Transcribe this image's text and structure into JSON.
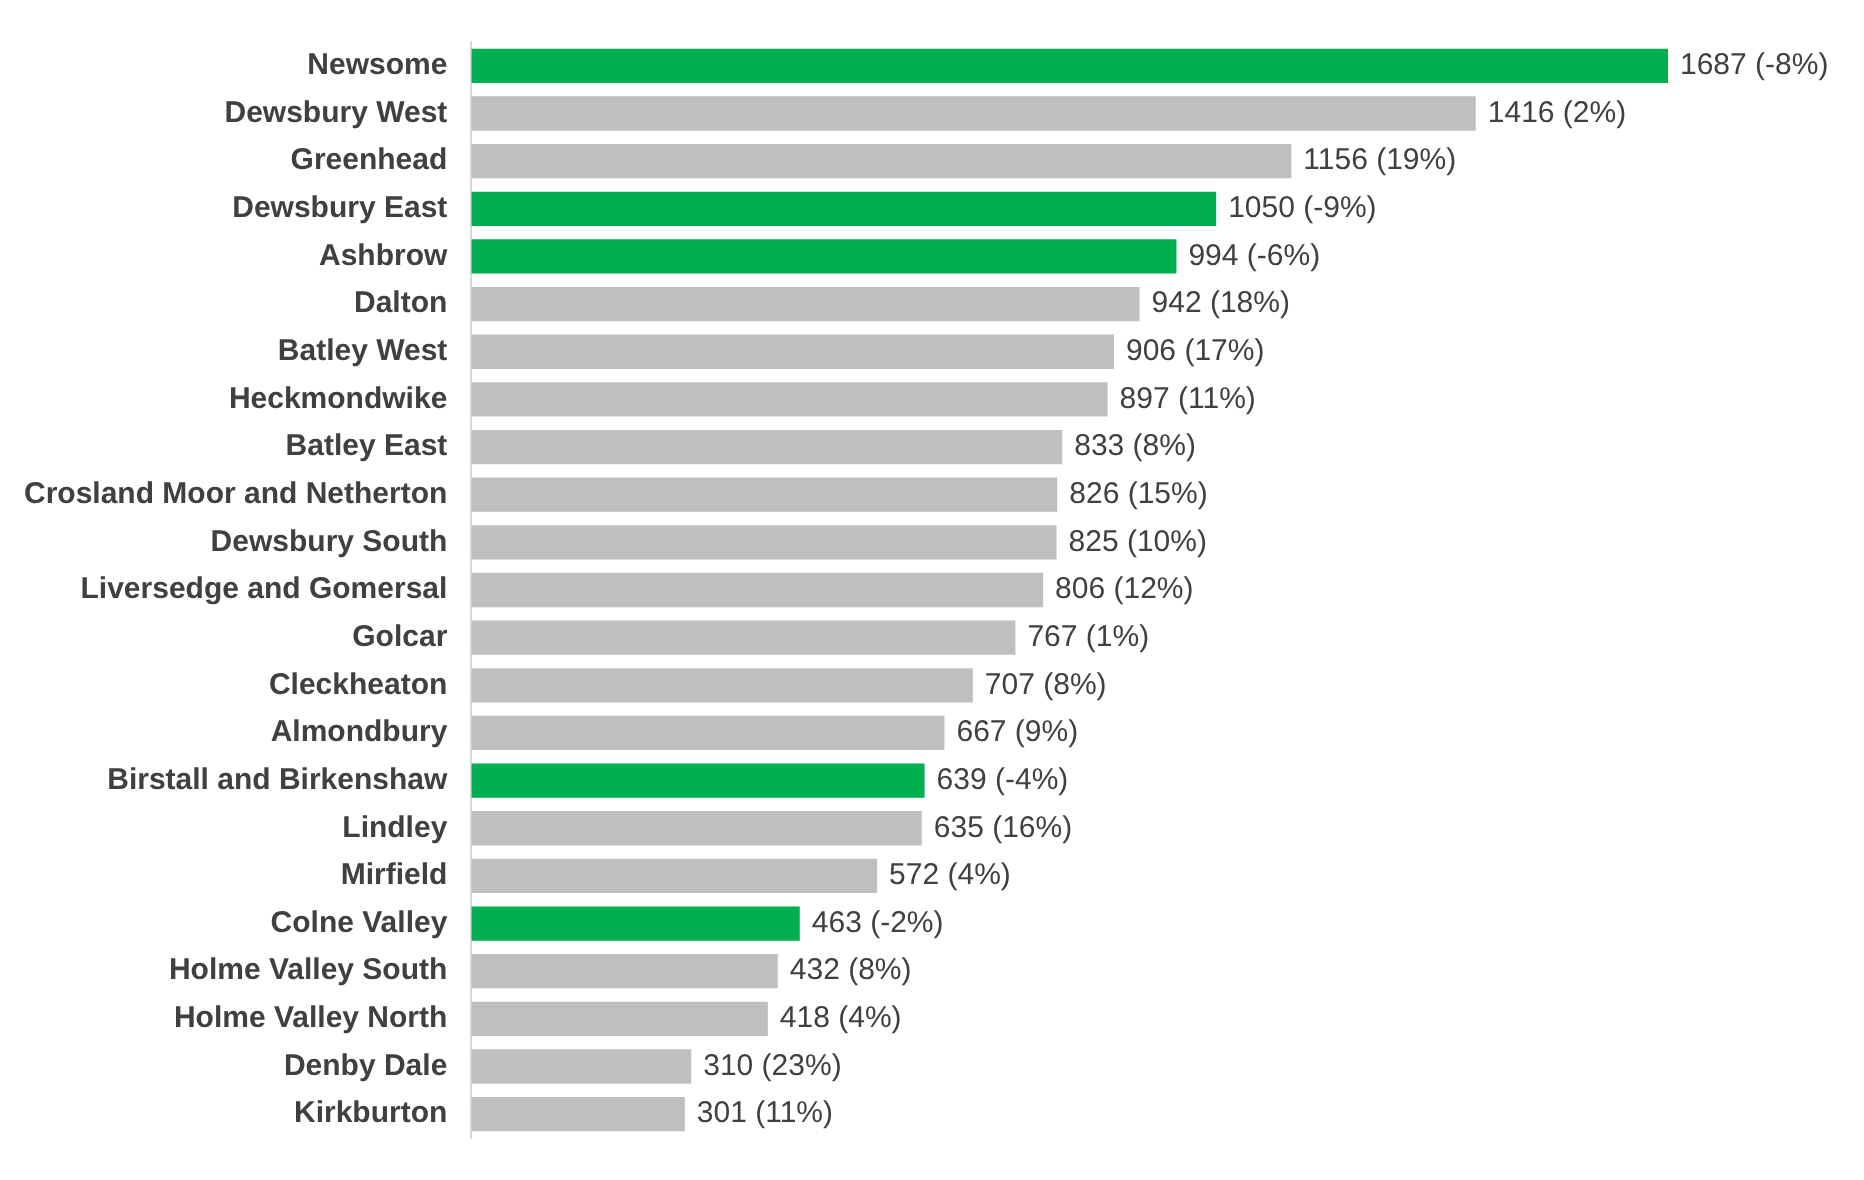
{
  "chart_data": {
    "type": "bar",
    "orientation": "horizontal",
    "categories": [
      "Newsome",
      "Dewsbury West",
      "Greenhead",
      "Dewsbury East",
      "Ashbrow",
      "Dalton",
      "Batley West",
      "Heckmondwike",
      "Batley East",
      "Crosland Moor and Netherton",
      "Dewsbury South",
      "Liversedge and Gomersal",
      "Golcar",
      "Cleckheaton",
      "Almondbury",
      "Birstall and Birkenshaw",
      "Lindley",
      "Mirfield",
      "Colne Valley",
      "Holme Valley South",
      "Holme Valley North",
      "Denby Dale",
      "Kirkburton"
    ],
    "values": [
      1687,
      1416,
      1156,
      1050,
      994,
      942,
      906,
      897,
      833,
      826,
      825,
      806,
      767,
      707,
      667,
      639,
      635,
      572,
      463,
      432,
      418,
      310,
      301
    ],
    "colors": [
      "#00b050",
      "#bfbfbf",
      "#bfbfbf",
      "#00b050",
      "#00b050",
      "#bfbfbf",
      "#bfbfbf",
      "#bfbfbf",
      "#bfbfbf",
      "#bfbfbf",
      "#bfbfbf",
      "#bfbfbf",
      "#bfbfbf",
      "#bfbfbf",
      "#bfbfbf",
      "#00b050",
      "#bfbfbf",
      "#bfbfbf",
      "#00b050",
      "#bfbfbf",
      "#bfbfbf",
      "#bfbfbf",
      "#bfbfbf"
    ],
    "value_labels": [
      "1687 (-8%)",
      "1416 (2%)",
      "1156 (19%)",
      "1050 (-9%)",
      "994 (-6%)",
      "942 (18%)",
      "906 (17%)",
      "897 (11%)",
      "833 (8%)",
      "826 (15%)",
      "825 (10%)",
      "806 (12%)",
      "767 (1%)",
      "707 (8%)",
      "667 (9%)",
      "639 (-4%)",
      "635 (16%)",
      "572 (4%)",
      "463 (-2%)",
      "432 (8%)",
      "418 (4%)",
      "310 (23%)",
      "301 (11%)"
    ],
    "xlim": [
      0,
      1687
    ],
    "tick_labels": "y",
    "legend": false
  }
}
